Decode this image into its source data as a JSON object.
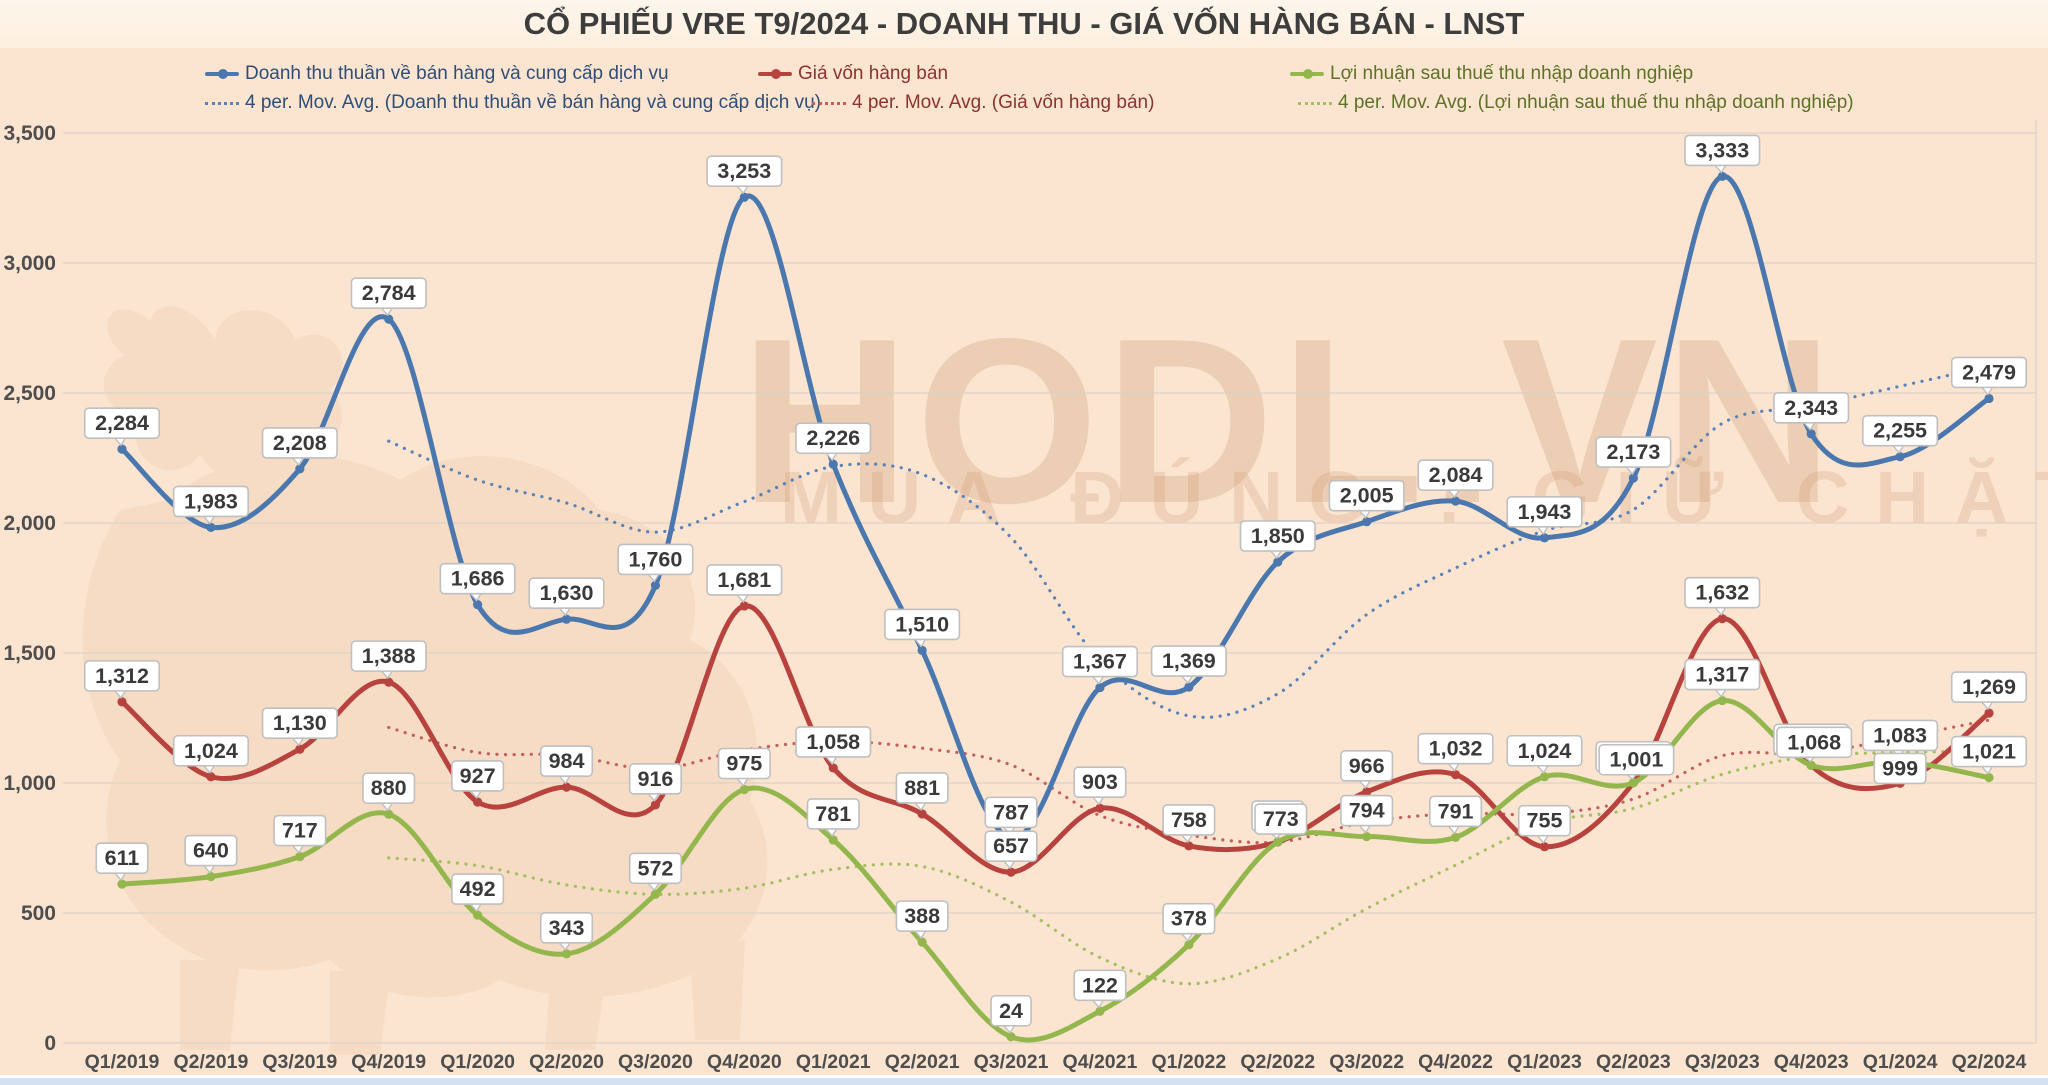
{
  "title": "CỔ PHIẾU VRE T9/2024 - DOANH THU - GIÁ VỐN HÀNG BÁN - LNST",
  "watermark": {
    "brand": "HODL.VN",
    "slogan": "MUA ĐÚNG . GIỮ CHẶT"
  },
  "colors": {
    "background": "#fbe5d1",
    "blue": "#4a77ae",
    "red": "#b8423e",
    "green": "#94b74d",
    "blue_avg": "#5b82b6",
    "red_avg": "#c4605c",
    "green_avg": "#a4bf62",
    "gridline": "#dcd2c5",
    "axis_text": "#4e4e4e",
    "label_text": "#3a3a3a",
    "label_border": "#bfbfbf",
    "label_fill": "#ffffff"
  },
  "legend": {
    "items": [
      {
        "label": "Doanh thu thuần về bán hàng và cung cấp dịch vụ",
        "type": "line",
        "color_key": "blue"
      },
      {
        "label": "Giá vốn hàng bán",
        "type": "line",
        "color_key": "red"
      },
      {
        "label": "Lợi nhuận sau thuế thu nhập doanh nghiệp",
        "type": "line",
        "color_key": "green"
      },
      {
        "label": "4 per. Mov. Avg. (Doanh thu thuần về bán hàng và cung cấp dịch vụ)",
        "type": "dotted",
        "color_key": "blue_avg"
      },
      {
        "label": "4 per. Mov. Avg. (Giá vốn hàng bán)",
        "type": "dotted",
        "color_key": "red_avg"
      },
      {
        "label": "4 per. Mov. Avg. (Lợi nhuận sau thuế thu nhập doanh nghiệp)",
        "type": "dotted",
        "color_key": "green_avg"
      }
    ]
  },
  "chart_data": {
    "type": "line",
    "categories": [
      "Q1/2019",
      "Q2/2019",
      "Q3/2019",
      "Q4/2019",
      "Q1/2020",
      "Q2/2020",
      "Q3/2020",
      "Q4/2020",
      "Q1/2021",
      "Q2/2021",
      "Q3/2021",
      "Q4/2021",
      "Q1/2022",
      "Q2/2022",
      "Q3/2022",
      "Q4/2022",
      "Q1/2023",
      "Q2/2023",
      "Q3/2023",
      "Q4/2023",
      "Q1/2024",
      "Q2/2024"
    ],
    "series": [
      {
        "name": "Doanh thu thuần về bán hàng và cung cấp dịch vụ",
        "color_key": "blue",
        "values": [
          2284,
          1983,
          2208,
          2784,
          1686,
          1630,
          1760,
          3253,
          2226,
          1510,
          787,
          1367,
          1369,
          1850,
          2005,
          2084,
          1943,
          2173,
          3333,
          2343,
          2255,
          2479
        ]
      },
      {
        "name": "Giá vốn hàng bán",
        "color_key": "red",
        "values": [
          1312,
          1024,
          1130,
          1388,
          927,
          984,
          916,
          1681,
          1058,
          881,
          657,
          903,
          758,
          773,
          966,
          1032,
          755,
          1001,
          1632,
          1068,
          999,
          1269
        ]
      },
      {
        "name": "Lợi nhuận sau thuế thu nhập doanh nghiệp",
        "color_key": "green",
        "values": [
          611,
          640,
          717,
          880,
          492,
          343,
          572,
          975,
          781,
          388,
          24,
          122,
          378,
          773,
          794,
          791,
          1024,
          1001,
          1317,
          1068,
          1083,
          1021
        ]
      }
    ],
    "moving_average": {
      "window": 4,
      "label_prefix": "4 per. Mov. Avg."
    },
    "title": "CỔ PHIẾU VRE T9/2024 - DOANH THU - GIÁ VỐN HÀNG BÁN - LNST",
    "xlabel": "",
    "ylabel": "",
    "ylim": [
      0,
      3500
    ],
    "ytick_step": 500,
    "grid": true,
    "legend_position": "top",
    "data_labels": true
  }
}
